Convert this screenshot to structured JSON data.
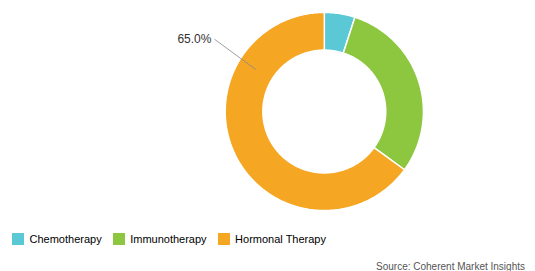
{
  "chart_data": {
    "type": "donut",
    "categories": [
      "Chemotherapy",
      "Immunotherapy",
      "Hormonal Therapy"
    ],
    "values": [
      5.0,
      30.0,
      65.0
    ],
    "colors": [
      "#5bc8d6",
      "#8dc63f",
      "#f5a623"
    ],
    "annotations": [
      {
        "text": "65.0%",
        "category": "Hormonal Therapy"
      }
    ],
    "caption": "Source: Coherent Market Insights",
    "legend": "bottom"
  }
}
